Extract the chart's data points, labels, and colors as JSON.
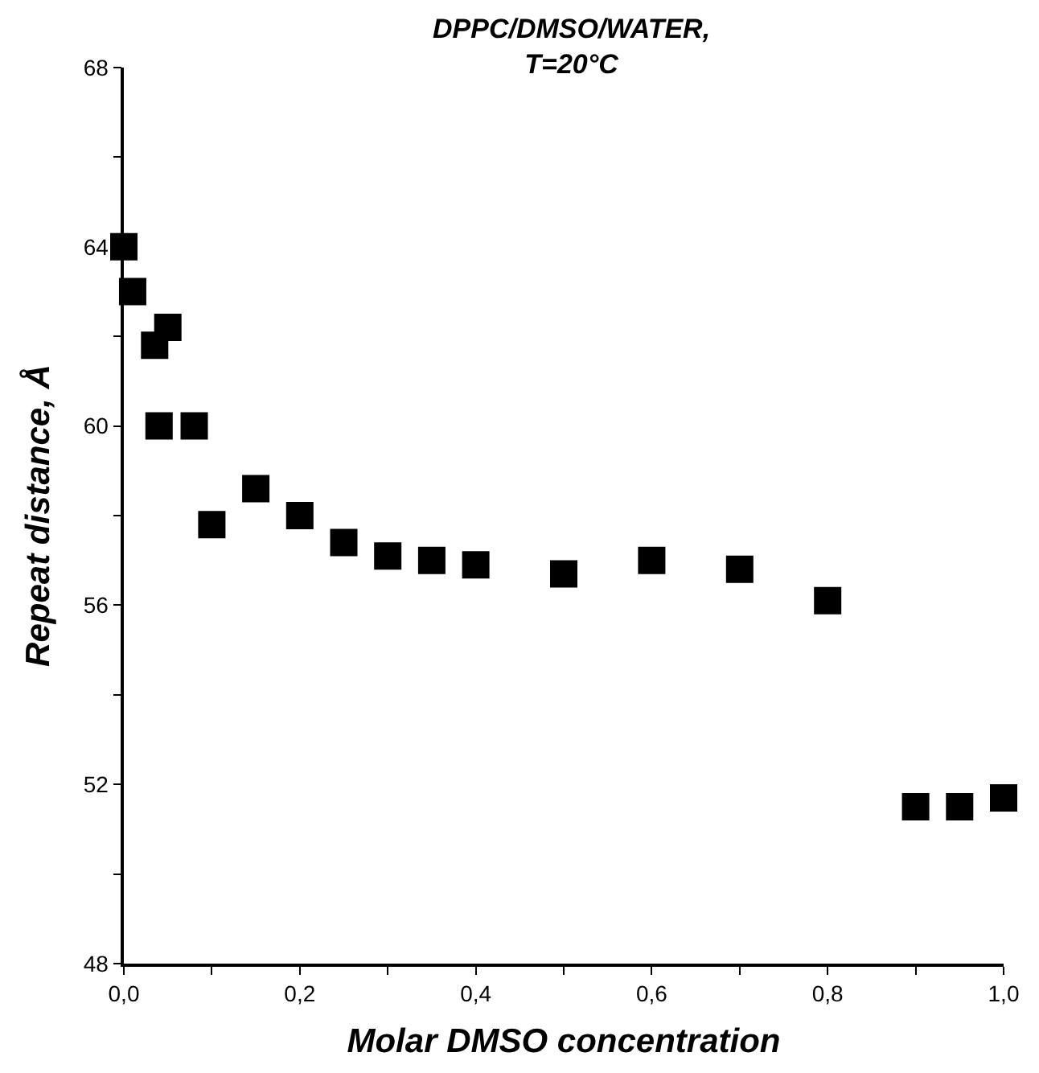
{
  "chart_data": {
    "type": "scatter",
    "title": "DPPC/DMSO/WATER,\nT=20°C",
    "xlabel": "Molar DMSO concentration",
    "ylabel": "Repeat distance, Å",
    "x": [
      0,
      0.01,
      0.035,
      0.05,
      0.04,
      0.08,
      0.1,
      0.15,
      0.2,
      0.25,
      0.3,
      0.35,
      0.4,
      0.5,
      0.6,
      0.7,
      0.8,
      0.9,
      0.95,
      1.0
    ],
    "series": [
      {
        "color": "#000000",
        "values": [
          64.0,
          63.0,
          61.8,
          62.2,
          60.0,
          60.0,
          57.8,
          58.6,
          58.0,
          57.4,
          57.1,
          57.0,
          56.9,
          56.7,
          57.0,
          56.8,
          56.1,
          51.5,
          51.5,
          51.7
        ]
      }
    ],
    "xlim": [
      0,
      1
    ],
    "ylim": [
      48,
      68
    ],
    "xticks": [
      {
        "value": 0,
        "label": "0,0"
      },
      {
        "value": 0.1,
        "label": null
      },
      {
        "value": 0.2,
        "label": "0,2"
      },
      {
        "value": 0.3,
        "label": null
      },
      {
        "value": 0.4,
        "label": "0,4"
      },
      {
        "value": 0.5,
        "label": null
      },
      {
        "value": 0.6,
        "label": "0,6"
      },
      {
        "value": 0.7,
        "label": null
      },
      {
        "value": 0.8,
        "label": "0,8"
      },
      {
        "value": 0.9,
        "label": null
      },
      {
        "value": 1,
        "label": "1,0"
      }
    ],
    "yticks": [
      48,
      {
        "value": 50,
        "label": null
      },
      52,
      {
        "value": 54,
        "label": null
      },
      56,
      {
        "value": 58,
        "label": null
      },
      60,
      {
        "value": 62,
        "label": null
      },
      64,
      {
        "value": 66,
        "label": null
      },
      68
    ],
    "marker": "square",
    "grid": false,
    "legend": false
  }
}
